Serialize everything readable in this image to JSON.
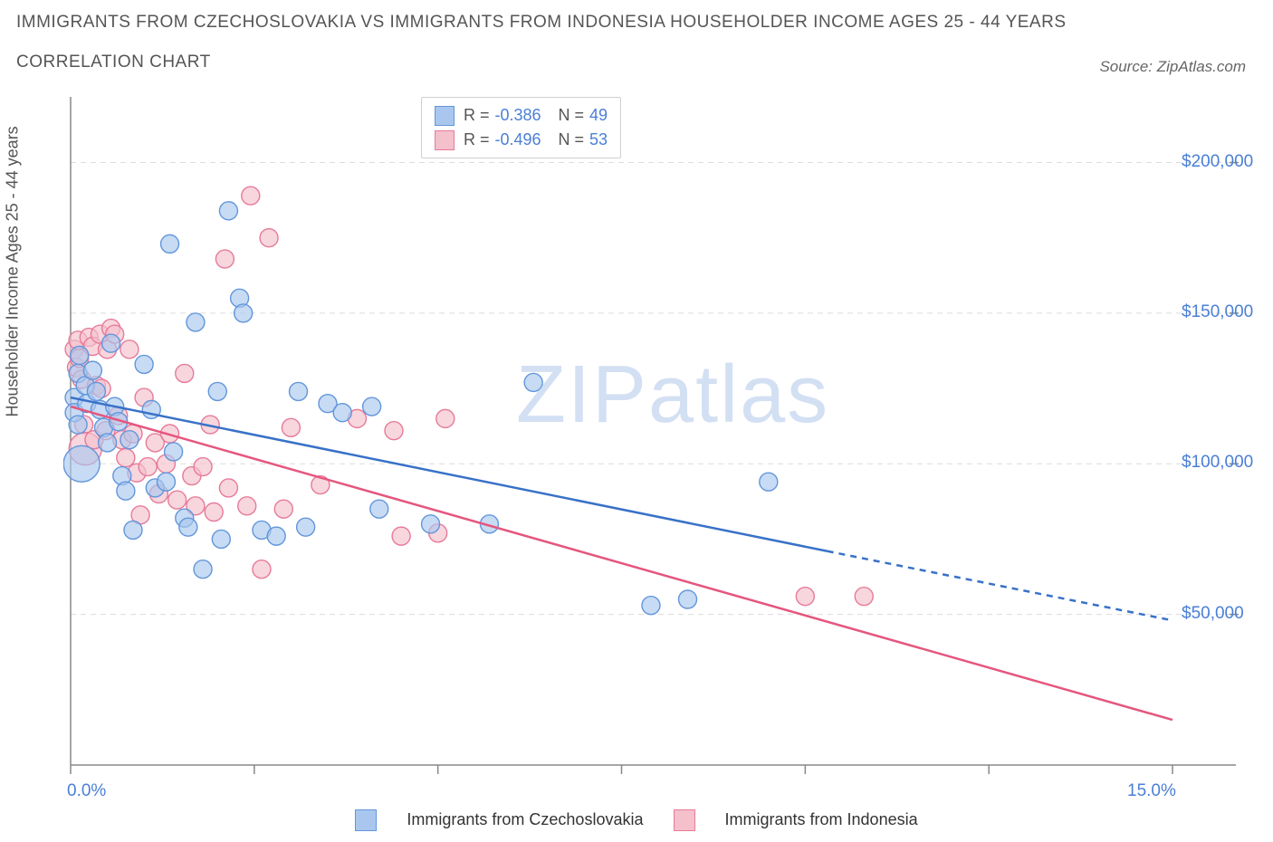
{
  "title_line1": "IMMIGRANTS FROM CZECHOSLOVAKIA VS IMMIGRANTS FROM INDONESIA HOUSEHOLDER INCOME AGES 25 - 44 YEARS",
  "title_line2": "CORRELATION CHART",
  "source_label": "Source: ZipAtlas.com",
  "y_axis_label": "Householder Income Ages 25 - 44 years",
  "watermark_text": "ZIPatlas",
  "chart": {
    "type": "scatter-with-trend",
    "background_color": "#ffffff",
    "grid_color": "#dcdcdc",
    "axis_line_color": "#888",
    "tick_color": "#888",
    "x_range": [
      0,
      15
    ],
    "y_range": [
      0,
      220000
    ],
    "x_ticks": [
      0,
      2.5,
      5,
      7.5,
      10,
      12.5,
      15
    ],
    "x_tick_labels": {
      "0": "0.0%",
      "15": "15.0%"
    },
    "y_gridlines": [
      50000,
      100000,
      150000,
      200000
    ],
    "y_tick_labels": {
      "50000": "$50,000",
      "100000": "$100,000",
      "150000": "$150,000",
      "200000": "$200,000"
    },
    "axis_label_color": "#4a7fd6",
    "axis_label_fontsize": 19,
    "series": [
      {
        "name": "Immigrants from Czechoslovakia",
        "fill_color": "#a9c7ee",
        "stroke_color": "#6296db",
        "fill_opacity": 0.65,
        "marker_radius": 10,
        "trend_color": "#3871c8",
        "trend_width": 2.5,
        "r_value": "-0.386",
        "n_value": "49",
        "trend_start": {
          "x": 0,
          "y": 122000
        },
        "trend_solid_end": {
          "x": 10.3,
          "y": 71000
        },
        "trend_dashed_end": {
          "x": 15,
          "y": 48000
        },
        "points": [
          {
            "x": 0.05,
            "y": 122000
          },
          {
            "x": 0.05,
            "y": 117000
          },
          {
            "x": 0.1,
            "y": 130000
          },
          {
            "x": 0.12,
            "y": 136000
          },
          {
            "x": 0.1,
            "y": 113000
          },
          {
            "x": 0.15,
            "y": 100000,
            "r": 20
          },
          {
            "x": 0.2,
            "y": 126000
          },
          {
            "x": 0.22,
            "y": 120000
          },
          {
            "x": 0.3,
            "y": 131000
          },
          {
            "x": 0.35,
            "y": 124000
          },
          {
            "x": 0.4,
            "y": 118000
          },
          {
            "x": 0.45,
            "y": 112000
          },
          {
            "x": 0.5,
            "y": 107000
          },
          {
            "x": 0.55,
            "y": 140000
          },
          {
            "x": 0.6,
            "y": 119000
          },
          {
            "x": 0.65,
            "y": 114000
          },
          {
            "x": 0.7,
            "y": 96000
          },
          {
            "x": 0.75,
            "y": 91000
          },
          {
            "x": 0.8,
            "y": 108000
          },
          {
            "x": 0.85,
            "y": 78000
          },
          {
            "x": 1.0,
            "y": 133000
          },
          {
            "x": 1.1,
            "y": 118000
          },
          {
            "x": 1.15,
            "y": 92000
          },
          {
            "x": 1.3,
            "y": 94000
          },
          {
            "x": 1.35,
            "y": 173000
          },
          {
            "x": 1.4,
            "y": 104000
          },
          {
            "x": 1.55,
            "y": 82000
          },
          {
            "x": 1.6,
            "y": 79000
          },
          {
            "x": 1.7,
            "y": 147000
          },
          {
            "x": 1.8,
            "y": 65000
          },
          {
            "x": 2.0,
            "y": 124000
          },
          {
            "x": 2.05,
            "y": 75000
          },
          {
            "x": 2.15,
            "y": 184000
          },
          {
            "x": 2.3,
            "y": 155000
          },
          {
            "x": 2.35,
            "y": 150000
          },
          {
            "x": 2.6,
            "y": 78000
          },
          {
            "x": 2.8,
            "y": 76000
          },
          {
            "x": 3.1,
            "y": 124000
          },
          {
            "x": 3.2,
            "y": 79000
          },
          {
            "x": 3.5,
            "y": 120000
          },
          {
            "x": 3.7,
            "y": 117000
          },
          {
            "x": 4.1,
            "y": 119000
          },
          {
            "x": 4.2,
            "y": 85000
          },
          {
            "x": 4.9,
            "y": 80000
          },
          {
            "x": 5.7,
            "y": 80000
          },
          {
            "x": 6.3,
            "y": 127000
          },
          {
            "x": 7.9,
            "y": 53000
          },
          {
            "x": 8.4,
            "y": 55000
          },
          {
            "x": 9.5,
            "y": 94000
          }
        ]
      },
      {
        "name": "Immigrants from Indonesia",
        "fill_color": "#f4c0cc",
        "stroke_color": "#e77a99",
        "fill_opacity": 0.65,
        "marker_radius": 10,
        "trend_color": "#e5567e",
        "trend_width": 2.5,
        "r_value": "-0.496",
        "n_value": "53",
        "trend_start": {
          "x": 0,
          "y": 119000
        },
        "trend_solid_end": {
          "x": 15,
          "y": 15000
        },
        "trend_dashed_end": null,
        "points": [
          {
            "x": 0.05,
            "y": 138000
          },
          {
            "x": 0.08,
            "y": 132000
          },
          {
            "x": 0.1,
            "y": 141000
          },
          {
            "x": 0.12,
            "y": 135000
          },
          {
            "x": 0.15,
            "y": 128000
          },
          {
            "x": 0.18,
            "y": 113000
          },
          {
            "x": 0.2,
            "y": 105000,
            "r": 18
          },
          {
            "x": 0.25,
            "y": 142000
          },
          {
            "x": 0.3,
            "y": 139000
          },
          {
            "x": 0.32,
            "y": 108000
          },
          {
            "x": 0.35,
            "y": 126000
          },
          {
            "x": 0.4,
            "y": 143000
          },
          {
            "x": 0.42,
            "y": 125000
          },
          {
            "x": 0.48,
            "y": 111000
          },
          {
            "x": 0.5,
            "y": 138000
          },
          {
            "x": 0.55,
            "y": 145000
          },
          {
            "x": 0.6,
            "y": 143000
          },
          {
            "x": 0.65,
            "y": 116000
          },
          {
            "x": 0.7,
            "y": 108000
          },
          {
            "x": 0.75,
            "y": 102000
          },
          {
            "x": 0.8,
            "y": 138000
          },
          {
            "x": 0.85,
            "y": 110000
          },
          {
            "x": 0.9,
            "y": 97000
          },
          {
            "x": 0.95,
            "y": 83000
          },
          {
            "x": 1.0,
            "y": 122000
          },
          {
            "x": 1.05,
            "y": 99000
          },
          {
            "x": 1.15,
            "y": 107000
          },
          {
            "x": 1.2,
            "y": 90000
          },
          {
            "x": 1.3,
            "y": 100000
          },
          {
            "x": 1.35,
            "y": 110000
          },
          {
            "x": 1.45,
            "y": 88000
          },
          {
            "x": 1.55,
            "y": 130000
          },
          {
            "x": 1.65,
            "y": 96000
          },
          {
            "x": 1.7,
            "y": 86000
          },
          {
            "x": 1.8,
            "y": 99000
          },
          {
            "x": 1.9,
            "y": 113000
          },
          {
            "x": 1.95,
            "y": 84000
          },
          {
            "x": 2.1,
            "y": 168000
          },
          {
            "x": 2.15,
            "y": 92000
          },
          {
            "x": 2.4,
            "y": 86000
          },
          {
            "x": 2.45,
            "y": 189000
          },
          {
            "x": 2.6,
            "y": 65000
          },
          {
            "x": 2.7,
            "y": 175000
          },
          {
            "x": 2.9,
            "y": 85000
          },
          {
            "x": 3.0,
            "y": 112000
          },
          {
            "x": 3.4,
            "y": 93000
          },
          {
            "x": 3.9,
            "y": 115000
          },
          {
            "x": 4.4,
            "y": 111000
          },
          {
            "x": 4.5,
            "y": 76000
          },
          {
            "x": 5.0,
            "y": 77000
          },
          {
            "x": 5.1,
            "y": 115000
          },
          {
            "x": 10.0,
            "y": 56000
          },
          {
            "x": 10.8,
            "y": 56000
          }
        ]
      }
    ],
    "legend_box": {
      "r_label": "R =",
      "n_label": "N ="
    },
    "title_fontsize": 19,
    "title_color": "#555"
  },
  "bottom_legend": {
    "series1_label": "Immigrants from Czechoslovakia",
    "series2_label": "Immigrants from Indonesia"
  }
}
